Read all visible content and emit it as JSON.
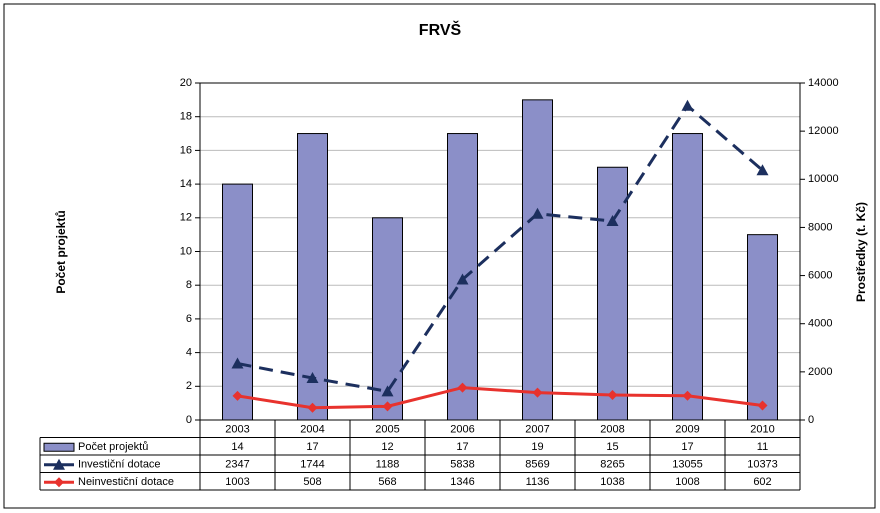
{
  "chart_data": {
    "type": "bar_line",
    "title": "FRVŠ",
    "y_label": "Počet projektů",
    "y2_label": "Prostředky (t. Kč)",
    "categories": [
      "2003",
      "2004",
      "2005",
      "2006",
      "2007",
      "2008",
      "2009",
      "2010"
    ],
    "series": [
      {
        "name": "Počet projektů",
        "type": "bar",
        "color": "#8b8fc8",
        "values": [
          14,
          17,
          12,
          17,
          19,
          15,
          17,
          11
        ]
      },
      {
        "name": "Investiční dotace",
        "type": "line",
        "axis": "y2",
        "color": "#1c2f5e",
        "values": [
          2347,
          1744,
          1188,
          5838,
          8569,
          8265,
          13055,
          10373
        ]
      },
      {
        "name": "Neinvestiční dotace",
        "type": "line",
        "axis": "y2",
        "color": "#e8322d",
        "values": [
          1003,
          508,
          568,
          1346,
          1136,
          1038,
          1008,
          602
        ]
      }
    ],
    "ylim": [
      0,
      20
    ],
    "yticks": [
      0,
      2,
      4,
      6,
      8,
      10,
      12,
      14,
      16,
      18,
      20
    ],
    "y2lim": [
      0,
      14000
    ],
    "y2ticks": [
      0,
      2000,
      4000,
      6000,
      8000,
      10000,
      12000,
      14000
    ],
    "grid": true
  }
}
